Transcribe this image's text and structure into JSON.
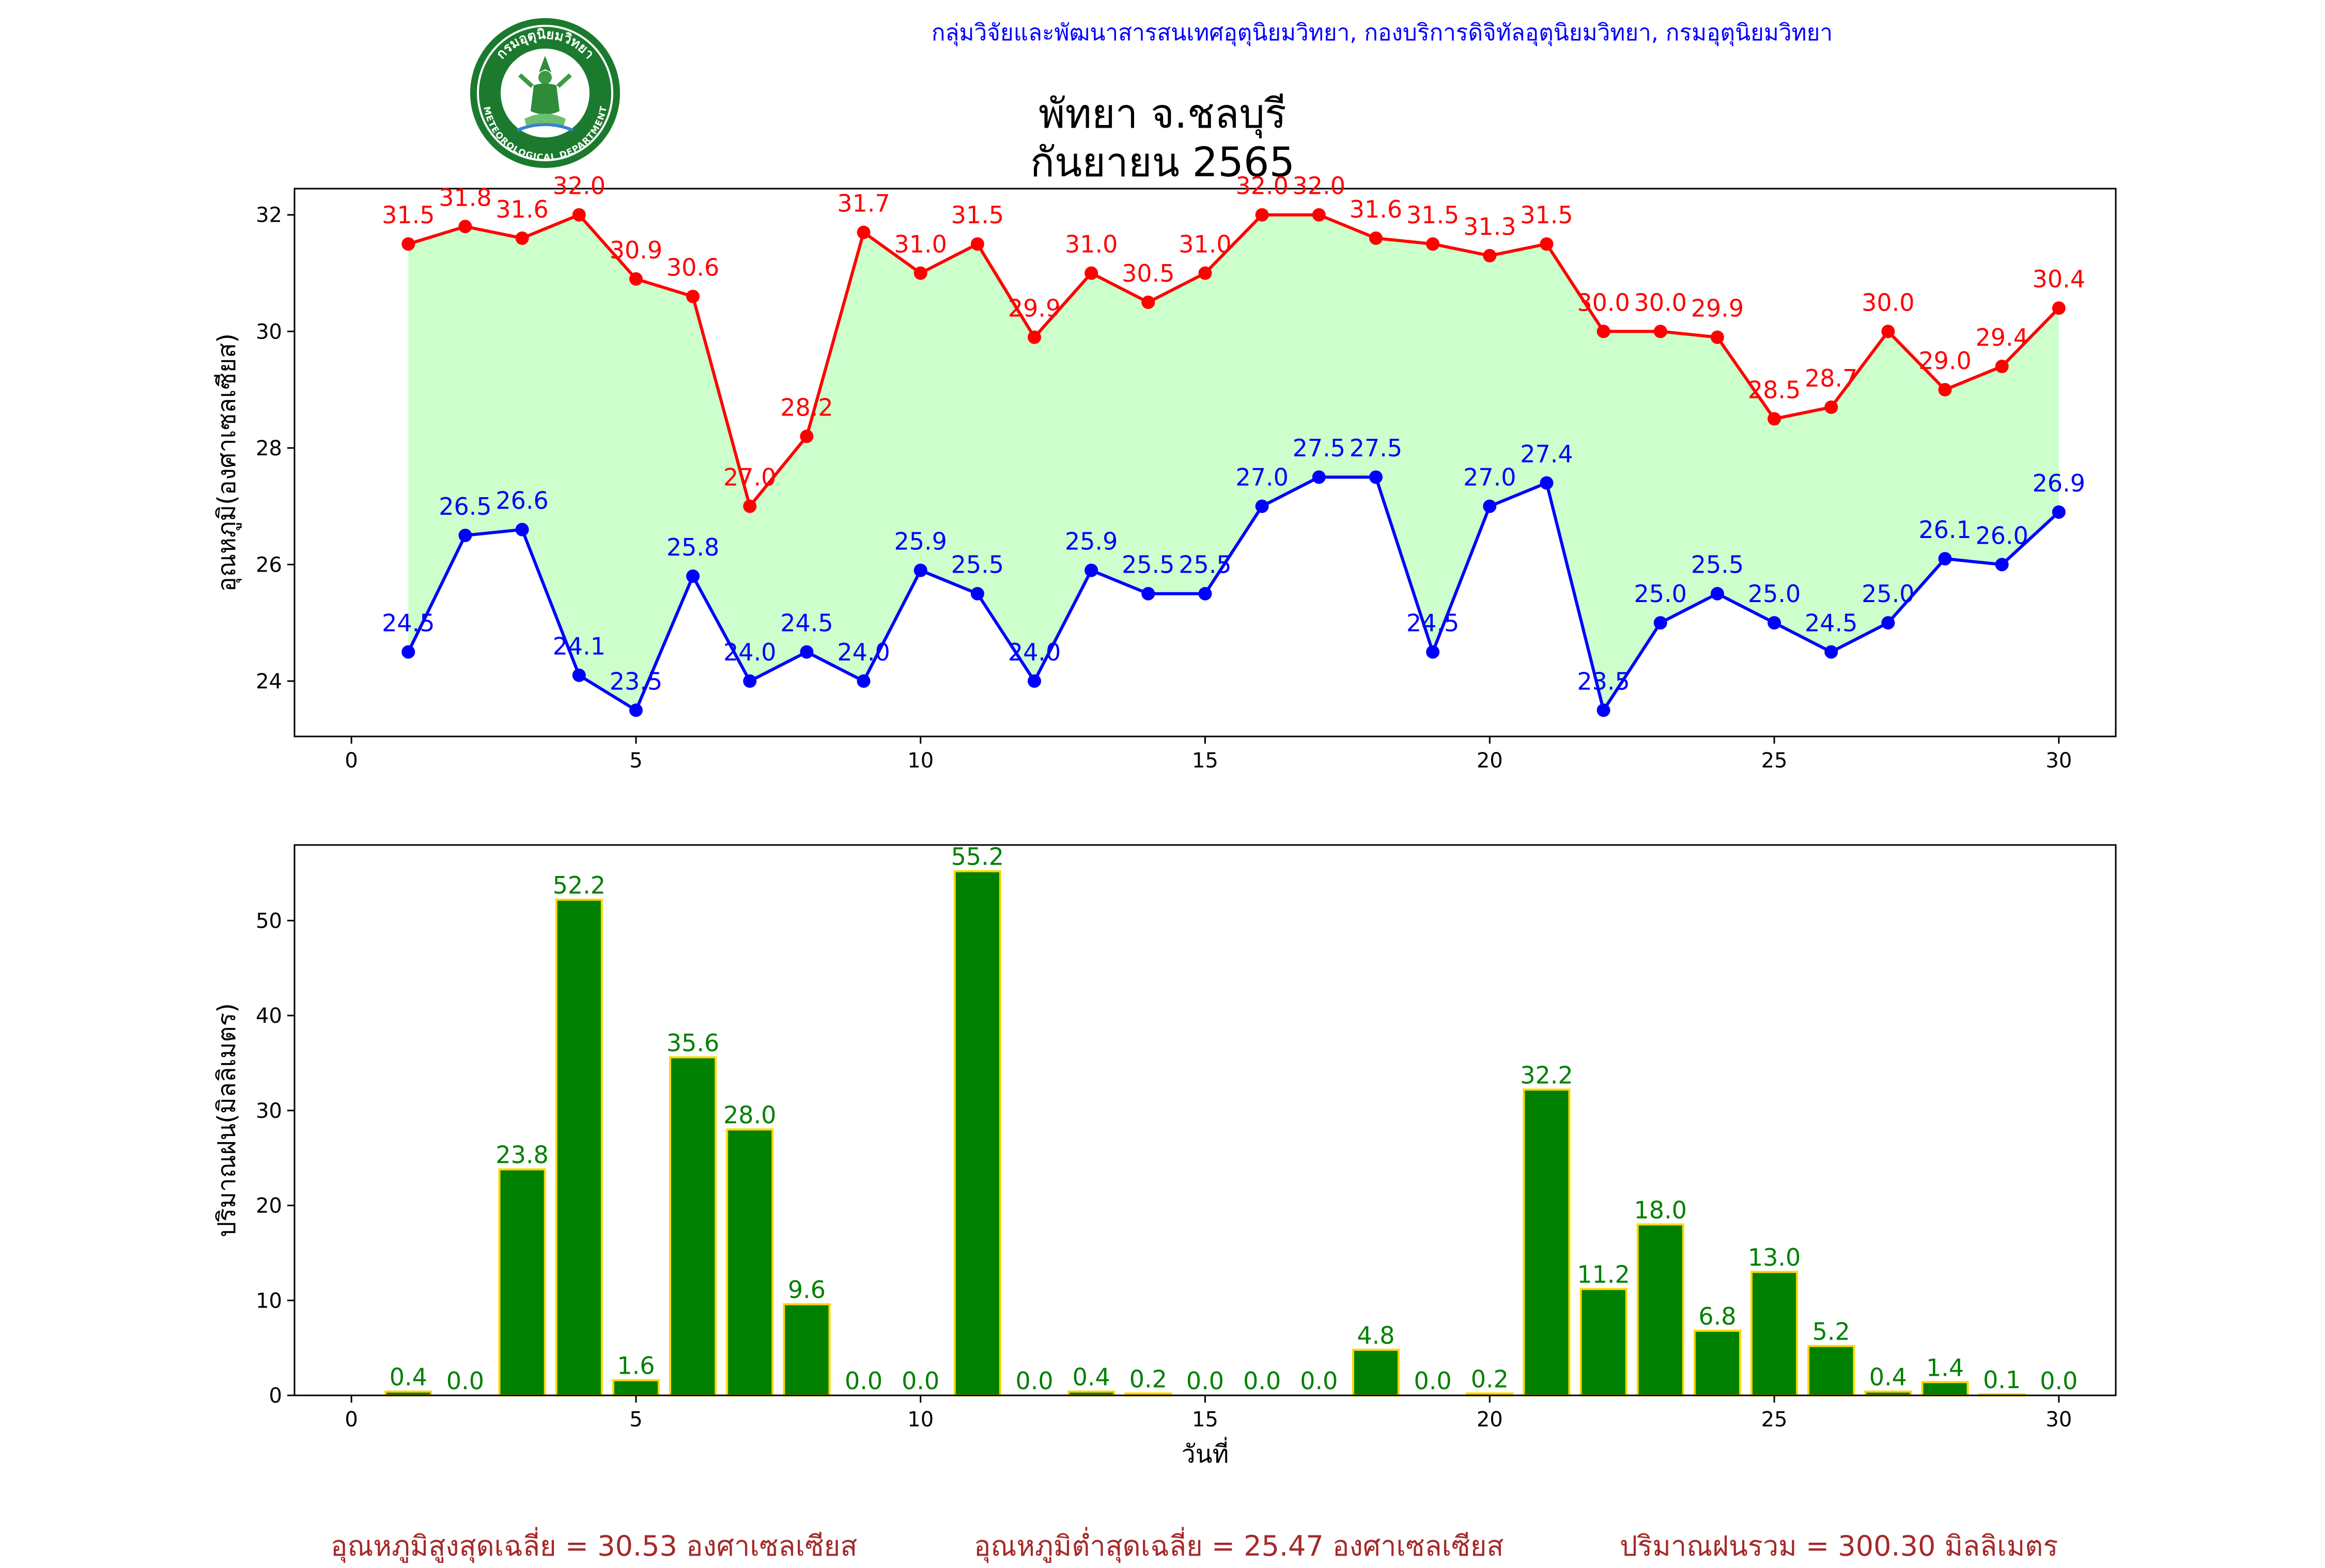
{
  "header": {
    "agency": "กลุ่มวิจัยและพัฒนาสารสนเทศอุตุนิยมวิทยา, กองบริการดิจิทัลอุตุนิยมวิทยา, กรมอุตุนิยมวิทยา",
    "station": "พัทยา จ.ชลบุรี",
    "period": "กันยายน 2565",
    "logo_text": "กรมอุตุนิยมวิทยา",
    "logo_text_en": "METEOROLOGICAL DEPARTMENT"
  },
  "colors": {
    "max_temp": "#ff0000",
    "min_temp": "#0000ff",
    "temp_range_fill": "#ccffcc",
    "rain_bar": "#008000",
    "rain_bar_edge": "#ffd700",
    "rain_label": "#008000",
    "footer": "#a52a2a",
    "agency": "#0000ff"
  },
  "chart_data": [
    {
      "type": "line",
      "ylabel": "อุณหภูมิ(องศาเซลเซียส)",
      "xlim": [
        -1,
        31
      ],
      "ylim": [
        23.05,
        32.45
      ],
      "xticks": [
        0,
        5,
        10,
        15,
        20,
        25,
        30
      ],
      "yticks": [
        24,
        26,
        28,
        30,
        32
      ],
      "x": [
        1,
        2,
        3,
        4,
        5,
        6,
        7,
        8,
        9,
        10,
        11,
        12,
        13,
        14,
        15,
        16,
        17,
        18,
        19,
        20,
        21,
        22,
        23,
        24,
        25,
        26,
        27,
        28,
        29,
        30
      ],
      "series": [
        {
          "key": "max",
          "values": [
            31.5,
            31.8,
            31.6,
            32.0,
            30.9,
            30.6,
            27.0,
            28.2,
            31.7,
            31.0,
            31.5,
            29.9,
            31.0,
            30.5,
            31.0,
            32.0,
            32.0,
            31.6,
            31.5,
            31.3,
            31.5,
            30.0,
            30.0,
            29.9,
            28.5,
            28.7,
            30.0,
            29.0,
            29.4,
            30.4
          ]
        },
        {
          "key": "min",
          "values": [
            24.5,
            26.5,
            26.6,
            24.1,
            23.5,
            25.8,
            24.0,
            24.5,
            24.0,
            25.9,
            25.5,
            24.0,
            25.9,
            25.5,
            25.5,
            27.0,
            27.5,
            27.5,
            24.5,
            27.0,
            27.4,
            23.5,
            25.0,
            25.5,
            25.0,
            24.5,
            25.0,
            26.1,
            26.0,
            26.9
          ]
        }
      ]
    },
    {
      "type": "bar",
      "ylabel": "ปริมาณฝน(มิลลิเมตร)",
      "xlabel": "วันที่",
      "xlim": [
        -1,
        31
      ],
      "ylim": [
        0,
        57.96
      ],
      "xticks": [
        0,
        5,
        10,
        15,
        20,
        25,
        30
      ],
      "yticks": [
        0,
        10,
        20,
        30,
        40,
        50
      ],
      "x": [
        1,
        2,
        3,
        4,
        5,
        6,
        7,
        8,
        9,
        10,
        11,
        12,
        13,
        14,
        15,
        16,
        17,
        18,
        19,
        20,
        21,
        22,
        23,
        24,
        25,
        26,
        27,
        28,
        29,
        30
      ],
      "values": [
        0.4,
        0.0,
        23.8,
        52.2,
        1.6,
        35.6,
        28.0,
        9.6,
        0.0,
        0.0,
        55.2,
        0.0,
        0.4,
        0.2,
        0.0,
        0.0,
        0.0,
        4.8,
        0.0,
        0.2,
        32.2,
        11.2,
        18.0,
        6.8,
        13.0,
        5.2,
        0.4,
        1.4,
        0.1,
        0.0
      ]
    }
  ],
  "footer": {
    "avg_max": "อุณหภูมิสูงสุดเฉลี่ย = 30.53 องศาเซลเซียส",
    "avg_min": "อุณหภูมิต่ำสุดเฉลี่ย = 25.47 องศาเซลเซียส",
    "total_rain": "ปริมาณฝนรวม = 300.30 มิลลิเมตร"
  }
}
